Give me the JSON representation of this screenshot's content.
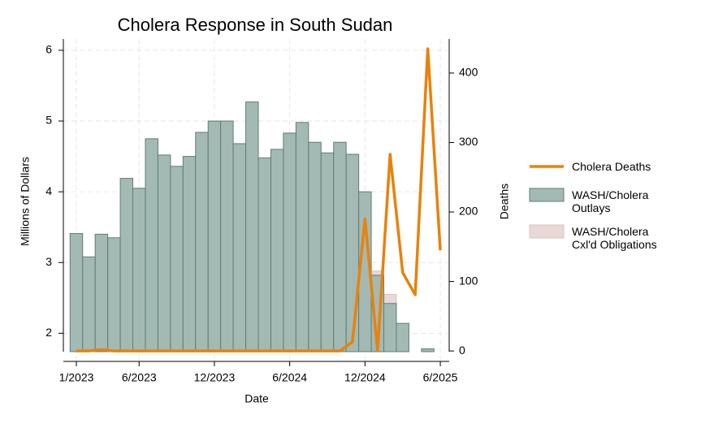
{
  "chart_data": {
    "type": "bar",
    "title": "Cholera Response in South Sudan",
    "x_label": "Date",
    "y_label": "Millions of Dollars",
    "y2_label": "Deaths",
    "categories": [
      "1/2023",
      null,
      null,
      null,
      null,
      "6/2023",
      null,
      null,
      null,
      null,
      null,
      "12/2023",
      null,
      null,
      null,
      null,
      null,
      "6/2024",
      null,
      null,
      null,
      null,
      null,
      "12/2024",
      null,
      null,
      null,
      null,
      null,
      "6/2025"
    ],
    "ylim": [
      1.74,
      6.16
    ],
    "yticks": [
      2,
      3,
      4,
      5,
      6
    ],
    "y2lim": [
      -1,
      449
    ],
    "y2ticks": [
      0,
      100,
      200,
      300,
      400
    ],
    "grid": true,
    "series": [
      {
        "name": "Cholera Deaths",
        "type": "line",
        "axis": "y2",
        "color": "#e8820c",
        "values": [
          0,
          0,
          2,
          0,
          0,
          0,
          0,
          0,
          0,
          0,
          0,
          0,
          0,
          0,
          0,
          0,
          0,
          0,
          0,
          0,
          0,
          0,
          13,
          190,
          0,
          283,
          113,
          81,
          435,
          145
        ]
      },
      {
        "name": "WASH/Cholera Outlays",
        "type": "bar",
        "color": "#a3bab4",
        "values": [
          3.41,
          3.08,
          3.4,
          3.35,
          4.19,
          4.05,
          4.75,
          4.52,
          4.36,
          4.5,
          4.84,
          5.0,
          5.0,
          4.68,
          5.27,
          4.48,
          4.6,
          4.83,
          4.98,
          4.7,
          4.55,
          4.7,
          4.53,
          4.0,
          2.82,
          2.42,
          2.14,
          null,
          1.78,
          null
        ]
      },
      {
        "name": "WASH/Cholera Cxl'd Obligations",
        "type": "bar",
        "color": "#e8d8d6",
        "values": [
          null,
          null,
          null,
          null,
          null,
          null,
          null,
          null,
          null,
          null,
          null,
          null,
          null,
          null,
          null,
          null,
          null,
          null,
          null,
          null,
          null,
          null,
          null,
          null,
          2.88,
          2.55,
          null,
          null,
          null,
          null
        ]
      }
    ]
  }
}
